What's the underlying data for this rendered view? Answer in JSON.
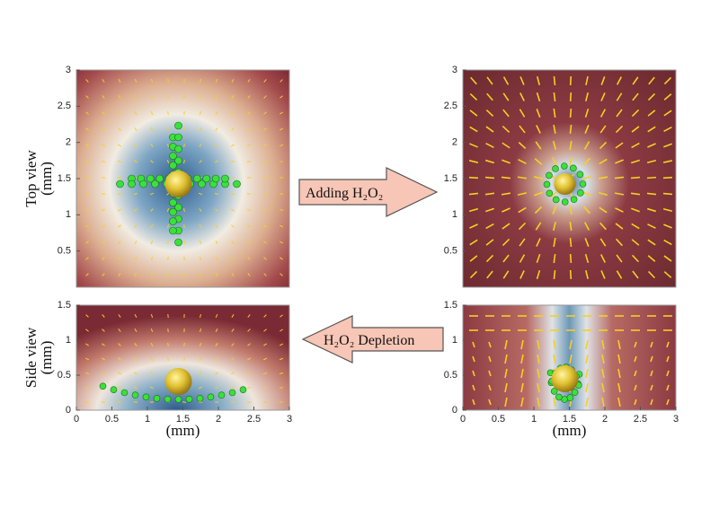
{
  "chart_data": [
    {
      "type": "field",
      "xlim": [
        0,
        3
      ],
      "ylim": [
        0,
        3
      ],
      "yticks": [
        0.5,
        1,
        1.5,
        2,
        2.5,
        3
      ],
      "ylabel": [
        "Top view",
        "(mm)"
      ]
    },
    {
      "type": "field",
      "xlim": [
        0,
        3
      ],
      "ylim": [
        0,
        3
      ],
      "yticks": [
        0.5,
        1,
        1.5,
        2,
        2.5,
        3
      ]
    },
    {
      "type": "field",
      "xlim": [
        0,
        3
      ],
      "ylim": [
        0,
        1.5
      ],
      "xticks": [
        0,
        0.5,
        1,
        1.5,
        2,
        2.5,
        3
      ],
      "yticks": [
        0,
        0.5,
        1,
        1.5
      ],
      "ylabel": [
        "Side view",
        "(mm)"
      ],
      "xlabel": "(mm)"
    },
    {
      "type": "field",
      "xlim": [
        0,
        3
      ],
      "ylim": [
        0,
        1.5
      ],
      "xticks": [
        0,
        0.5,
        1,
        1.5,
        2,
        2.5,
        3
      ],
      "yticks": [
        0,
        0.5,
        1,
        1.5
      ],
      "xlabel": "(mm)"
    }
  ],
  "annotations": [
    "Adding H₂O₂",
    "H₂O₂ Depletion"
  ]
}
